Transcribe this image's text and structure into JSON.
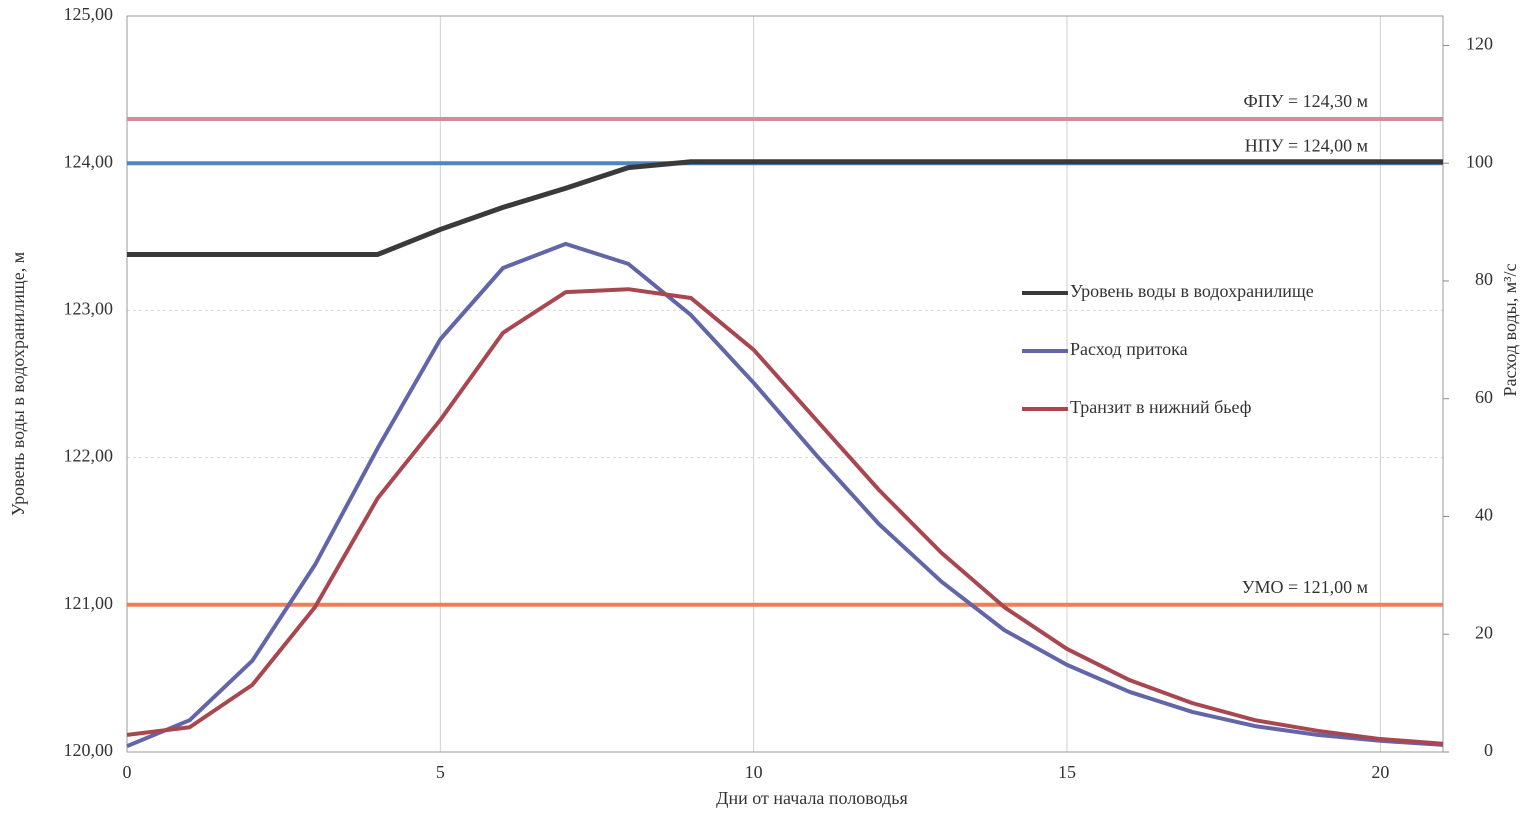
{
  "chart_data": {
    "type": "line",
    "x_label": "Дни от начала половодья",
    "y_label": "Уровень воды в водохранилище, м",
    "y2_label": "Расход воды, м³/с",
    "x": [
      0,
      1,
      2,
      3,
      4,
      5,
      6,
      7,
      8,
      9,
      10,
      11,
      12,
      13,
      14,
      15,
      16,
      17,
      18,
      19,
      20,
      21
    ],
    "xlim": [
      0,
      21
    ],
    "xticks": [
      0,
      5,
      10,
      15,
      20
    ],
    "ylim": [
      120,
      125
    ],
    "yticks": [
      {
        "value": 120,
        "label": "120,00"
      },
      {
        "value": 121,
        "label": "121,00"
      },
      {
        "value": 122,
        "label": "122,00"
      },
      {
        "value": 123,
        "label": "123,00"
      },
      {
        "value": 124,
        "label": "124,00"
      },
      {
        "value": 125,
        "label": "125,00"
      }
    ],
    "y2lim": [
      0,
      125
    ],
    "y2ticks": [
      0,
      20,
      40,
      60,
      80,
      100,
      120
    ],
    "grid": true,
    "legend": "center-right",
    "ref_lines": [
      {
        "value": 124.3,
        "label": "ФПУ = 124,30 м",
        "color": "#d88a9a"
      },
      {
        "value": 124.0,
        "label": "НПУ = 124,00 м",
        "color": "#4f86c0"
      },
      {
        "value": 121.0,
        "label": "УМО = 121,00 м",
        "color": "#e8805a"
      }
    ],
    "series": [
      {
        "name": "Уровень воды в водохранилище",
        "color": "#3a3a3a",
        "axis": "y",
        "values": [
          123.38,
          123.38,
          123.38,
          123.38,
          123.38,
          123.55,
          123.7,
          123.83,
          123.97,
          124.01,
          124.01,
          124.01,
          124.01,
          124.01,
          124.01,
          124.01,
          124.01,
          124.01,
          124.01,
          124.01,
          124.01,
          124.01
        ]
      },
      {
        "name": "Расход притока",
        "color": "#6265a8",
        "axis": "y2",
        "values": [
          1.0,
          5.4,
          15.5,
          31.8,
          51.6,
          70.1,
          82.2,
          86.3,
          82.9,
          74.2,
          62.7,
          50.4,
          38.7,
          28.9,
          20.7,
          14.8,
          10.2,
          6.8,
          4.4,
          2.9,
          1.9,
          1.2
        ]
      },
      {
        "name": "Транзит в нижний бьеф",
        "color": "#a8474f",
        "axis": "y2",
        "values": [
          2.9,
          4.2,
          11.4,
          24.6,
          43.1,
          56.4,
          71.2,
          78.1,
          78.6,
          77.1,
          68.3,
          56.4,
          44.5,
          33.8,
          24.6,
          17.5,
          12.2,
          8.3,
          5.4,
          3.6,
          2.2,
          1.4
        ]
      }
    ]
  }
}
